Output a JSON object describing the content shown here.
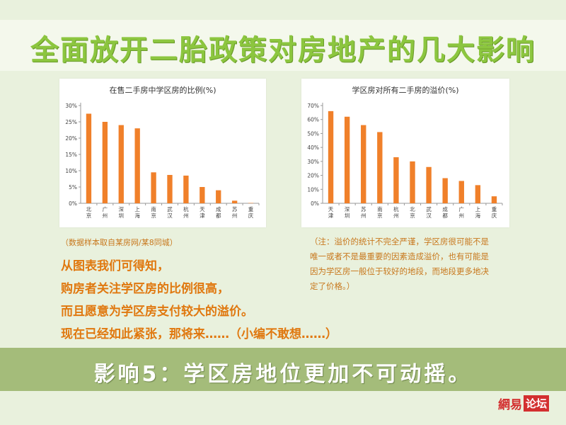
{
  "main_title": "全面放开二胎政策对房地产的几大影响",
  "chart_data": [
    {
      "type": "bar",
      "title": "在售二手房中学区房的比例(%)",
      "categories": [
        "北京",
        "广州",
        "深圳",
        "上海",
        "南京",
        "武汉",
        "杭州",
        "天津",
        "成都",
        "苏州",
        "重庆"
      ],
      "values": [
        27.5,
        25,
        24,
        23,
        9.5,
        8.7,
        8.5,
        5,
        4,
        0.8,
        0.1
      ],
      "ylim": [
        0,
        30
      ],
      "yticks": [
        0,
        5,
        10,
        15,
        20,
        25,
        30
      ],
      "ytick_labels": [
        "0%",
        "5%",
        "10%",
        "15%",
        "20%",
        "25%",
        "30%"
      ],
      "bar_color": "#f0802a",
      "grid": false
    },
    {
      "type": "bar",
      "title": "学区房对所有二手房的溢价(%)",
      "categories": [
        "天津",
        "深圳",
        "苏州",
        "南京",
        "杭州",
        "北京",
        "武汉",
        "成都",
        "广州",
        "上海",
        "重庆"
      ],
      "values": [
        66,
        62,
        56,
        51,
        33,
        30,
        26,
        18,
        16,
        13,
        5
      ],
      "ylim": [
        0,
        70
      ],
      "yticks": [
        0,
        10,
        20,
        30,
        40,
        50,
        60,
        70
      ],
      "ytick_labels": [
        "0%",
        "10%",
        "20%",
        "30%",
        "40%",
        "50%",
        "60%",
        "70%"
      ],
      "bar_color": "#f0802a",
      "grid": false
    }
  ],
  "source_note": "（数据样本取自某房网/某8同城）",
  "footnote_lines": [
    "（注：溢价的统计不完全严谨，学区房很可能不是",
    "唯一或者不是最重要的因素造成溢价，也有可能是",
    "因为学区房一般位于较好的地段，而地段更多地决",
    "定了价格。）"
  ],
  "body_lines": [
    "从图表我们可得知，",
    "购房者关注学区房的比例很高，",
    "而且愿意为学区房支付较大的溢价。",
    "现在已经如此紧张，那将来……（小编不敢想……）"
  ],
  "impact": "影响5：学区房地位更加不可动摇。",
  "logo": {
    "part1": "網易",
    "part2": "论坛"
  }
}
